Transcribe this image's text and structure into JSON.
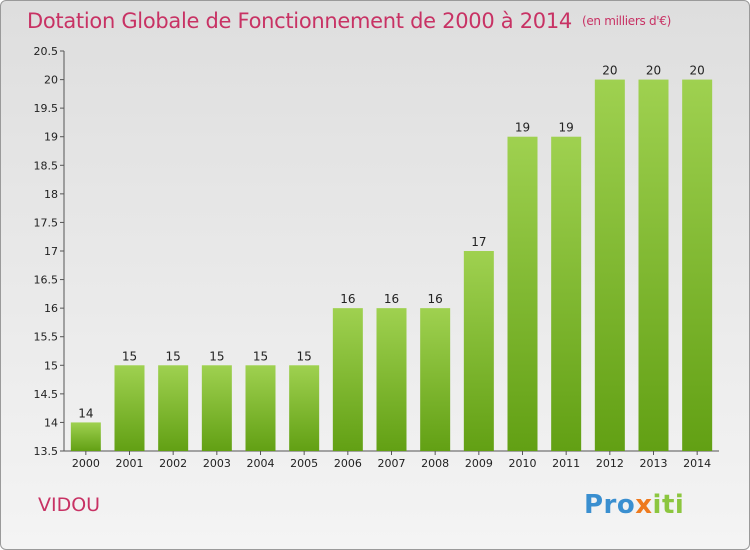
{
  "chart_data": {
    "type": "bar",
    "title": "Dotation Globale de Fonctionnement de 2000 à 2014",
    "subtitle": "(en milliers d'€)",
    "categories": [
      "2000",
      "2001",
      "2002",
      "2003",
      "2004",
      "2005",
      "2006",
      "2007",
      "2008",
      "2009",
      "2010",
      "2011",
      "2012",
      "2013",
      "2014"
    ],
    "values": [
      14,
      15,
      15,
      15,
      15,
      15,
      16,
      16,
      16,
      17,
      19,
      19,
      20,
      20,
      20
    ],
    "ylim": [
      13.5,
      20.5
    ],
    "yticks": [
      "13.5",
      "14",
      "14.5",
      "15",
      "15.5",
      "16",
      "16.5",
      "17",
      "17.5",
      "18",
      "18.5",
      "19",
      "19.5",
      "20",
      "20.5"
    ],
    "xlabel": "",
    "ylabel": "",
    "grid": false,
    "bar_color": "#7cb82f"
  },
  "commune": "VIDOU",
  "logo": {
    "part1": "Pro",
    "part2": "x",
    "part3": "iti"
  }
}
